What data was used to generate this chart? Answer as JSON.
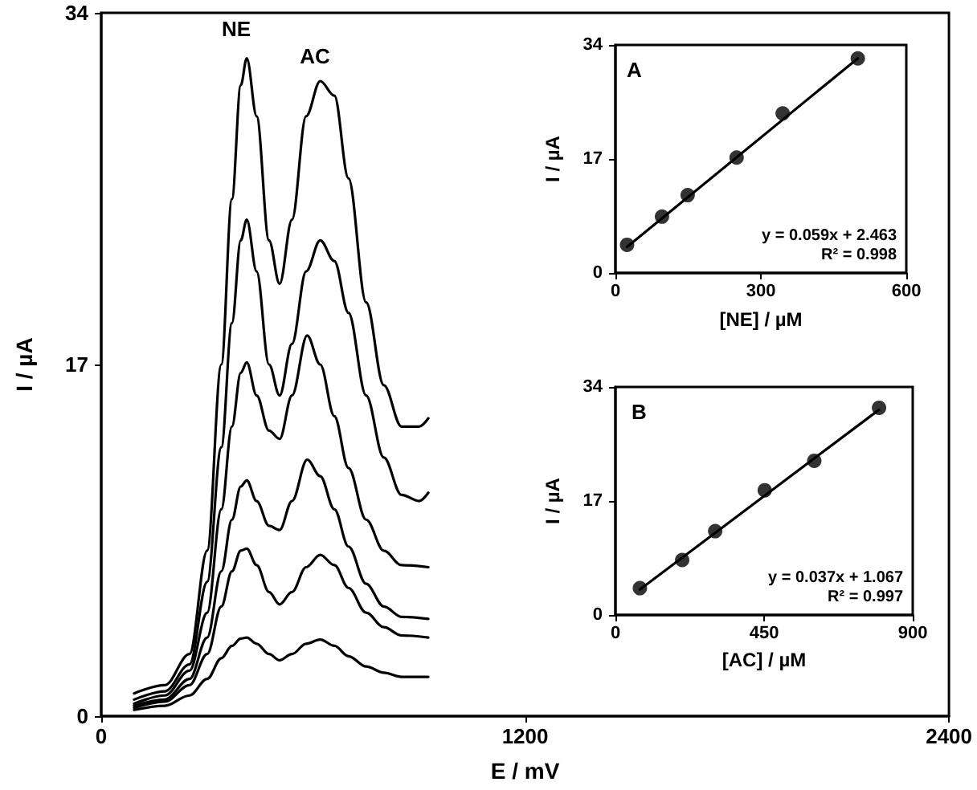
{
  "chart_data": [
    {
      "type": "line",
      "xlabel": "E / mV",
      "ylabel": "I / µA",
      "xlim": [
        0,
        2400
      ],
      "xticks": [
        0,
        1200,
        2400
      ],
      "ylim": [
        0,
        34
      ],
      "yticks": [
        0,
        17,
        34
      ],
      "line_style": "solid",
      "annotations": [
        "NE",
        "AC"
      ],
      "series": [
        {
          "color": "#000000",
          "x": [
            93,
            180,
            250,
            300,
            340,
            370,
            395,
            412,
            440,
            475,
            505,
            540,
            580,
            620,
            660,
            700,
            750,
            800,
            850,
            900,
            926
          ],
          "values": [
            1.1,
            1.5,
            3.0,
            8,
            17,
            25,
            30.5,
            31.8,
            29,
            23,
            20.9,
            24,
            29,
            30.7,
            30,
            26,
            20,
            16,
            14.0,
            14.0,
            14.4
          ]
        },
        {
          "color": "#000000",
          "x": [
            93,
            180,
            250,
            300,
            340,
            370,
            395,
            412,
            440,
            475,
            505,
            540,
            580,
            620,
            660,
            700,
            750,
            800,
            850,
            900,
            926
          ],
          "values": [
            0.8,
            1.2,
            2.5,
            6.5,
            13,
            19,
            23,
            24,
            21.5,
            17,
            15.5,
            18,
            21.5,
            23,
            22,
            19.5,
            15.5,
            12.5,
            10.7,
            10.4,
            10.8
          ]
        },
        {
          "color": "#000000",
          "x": [
            93,
            180,
            250,
            300,
            340,
            370,
            395,
            412,
            440,
            475,
            505,
            540,
            583,
            620,
            660,
            700,
            750,
            800,
            850,
            926
          ],
          "values": [
            0.6,
            1.0,
            2.2,
            5,
            10,
            14,
            16.6,
            17.1,
            15.5,
            13.8,
            13.4,
            15.5,
            18.4,
            17,
            14.5,
            12,
            9.5,
            8,
            7.3,
            7.2
          ]
        },
        {
          "color": "#000000",
          "x": [
            93,
            180,
            250,
            300,
            340,
            370,
            395,
            412,
            440,
            475,
            505,
            540,
            583,
            620,
            660,
            700,
            750,
            800,
            850,
            926
          ],
          "values": [
            0.5,
            0.8,
            1.8,
            3.8,
            7,
            9.5,
            11.1,
            11.4,
            10.4,
            9.2,
            9.0,
            10.4,
            12.4,
            11.6,
            10,
            8.2,
            6.4,
            5.3,
            4.8,
            4.7
          ]
        },
        {
          "color": "#000000",
          "x": [
            93,
            180,
            250,
            300,
            340,
            370,
            395,
            412,
            440,
            475,
            505,
            540,
            580,
            620,
            660,
            700,
            750,
            800,
            850,
            926
          ],
          "values": [
            0.4,
            0.7,
            1.5,
            3,
            5.3,
            7,
            8,
            8.1,
            7.3,
            6,
            5.4,
            6,
            7.2,
            7.8,
            7.3,
            6.2,
            5,
            4.3,
            3.9,
            3.8
          ]
        },
        {
          "color": "#000000",
          "x": [
            93,
            180,
            250,
            300,
            340,
            370,
            395,
            412,
            440,
            475,
            505,
            540,
            580,
            620,
            660,
            700,
            750,
            800,
            850,
            926
          ],
          "values": [
            0.3,
            0.5,
            1.0,
            1.8,
            2.8,
            3.4,
            3.75,
            3.8,
            3.5,
            3.0,
            2.7,
            3.0,
            3.5,
            3.7,
            3.4,
            2.9,
            2.4,
            2.1,
            1.9,
            1.9
          ]
        }
      ]
    },
    {
      "type": "scatter",
      "title": "A",
      "xlabel": "[NE] / µM",
      "ylabel": "I / µA",
      "xlim": [
        0,
        600
      ],
      "xticks": [
        0,
        300,
        600
      ],
      "ylim": [
        0,
        34
      ],
      "yticks": [
        0,
        17,
        34
      ],
      "marker": "circle",
      "annotations": [
        "y = 0.059x + 2.463",
        "R² = 0.998"
      ],
      "series": [
        {
          "color": "#000000",
          "x": [
            24,
            96,
            149,
            250,
            345,
            500
          ],
          "values": [
            4.2,
            8.4,
            11.6,
            17.2,
            23.8,
            32
          ]
        },
        {
          "type": "line",
          "marker": "none",
          "color": "#000000",
          "x": [
            24,
            500
          ],
          "values": [
            3.9,
            32.0
          ]
        }
      ]
    },
    {
      "type": "scatter",
      "title": "B",
      "xlabel": "[AC] / µM",
      "ylabel": "I / µA",
      "xlim": [
        0,
        900
      ],
      "xticks": [
        0,
        450,
        900
      ],
      "ylim": [
        0,
        34
      ],
      "yticks": [
        0,
        17,
        34
      ],
      "marker": "circle",
      "annotations": [
        "y = 0.037x + 1.067",
        "R² = 0.997"
      ],
      "series": [
        {
          "color": "#000000",
          "x": [
            74,
            202,
            302,
            452,
            602,
            798
          ],
          "values": [
            4.0,
            8.2,
            12.5,
            18.6,
            23.0,
            30.9
          ]
        },
        {
          "type": "line",
          "marker": "none",
          "color": "#000000",
          "x": [
            74,
            798
          ],
          "values": [
            3.8,
            30.6
          ]
        }
      ]
    }
  ]
}
